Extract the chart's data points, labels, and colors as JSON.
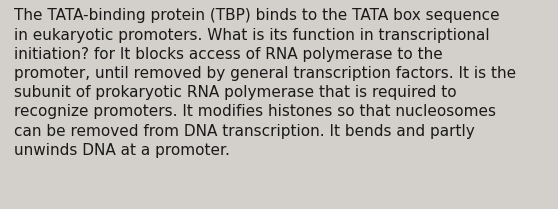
{
  "lines": [
    "The TATA-binding protein (TBP) binds to the TATA box sequence",
    "in eukaryotic promoters. What is its function in transcriptional",
    "initiation? for It blocks access of RNA polymerase to the",
    "promoter, until removed by general transcription factors. It is the",
    "subunit of prokaryotic RNA polymerase that is required to",
    "recognize promoters. It modifies histones so that nucleosomes",
    "can be removed from DNA transcription. It bends and partly",
    "unwinds DNA at a promoter."
  ],
  "background_color": "#d3cfca",
  "text_color": "#1a1a1a",
  "font_size": 11.0,
  "fig_width": 5.58,
  "fig_height": 2.09,
  "dpi": 100
}
